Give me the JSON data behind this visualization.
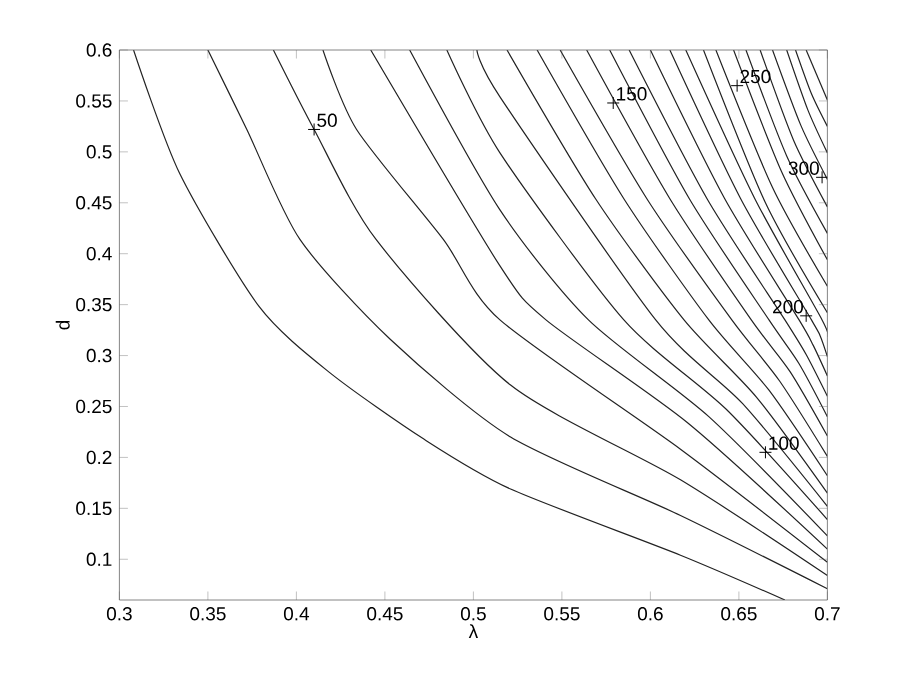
{
  "chart_data": {
    "type": "line",
    "xlabel": "λ",
    "ylabel": "d",
    "xlim": [
      0.3,
      0.7
    ],
    "ylim": [
      0.06,
      0.6
    ],
    "xticks": [
      0.3,
      0.35,
      0.4,
      0.45,
      0.5,
      0.55,
      0.6,
      0.65,
      0.7
    ],
    "yticks": [
      0.1,
      0.15,
      0.2,
      0.25,
      0.3,
      0.35,
      0.4,
      0.45,
      0.5,
      0.55,
      0.6
    ],
    "marker": "none",
    "line_style": "solid",
    "series": [
      {
        "color": "#222222",
        "x": [
          0.308,
          0.334,
          0.379,
          0.419,
          0.472,
          0.521,
          0.617,
          0.676
        ],
        "values": [
          0.6,
          0.479,
          0.348,
          0.283,
          0.218,
          0.169,
          0.104,
          0.06
        ]
      },
      {
        "color": "#222222",
        "x": [
          0.35,
          0.372,
          0.402,
          0.453,
          0.521,
          0.617,
          0.7
        ],
        "values": [
          0.6,
          0.522,
          0.414,
          0.316,
          0.22,
          0.143,
          0.071
        ]
      },
      {
        "color": "#222222",
        "x": [
          0.387,
          0.41,
          0.445,
          0.521,
          0.617,
          0.7
        ],
        "values": [
          0.6,
          0.522,
          0.414,
          0.271,
          0.178,
          0.084
        ]
      },
      {
        "color": "#222222",
        "x": [
          0.415,
          0.434,
          0.483,
          0.515,
          0.617,
          0.7
        ],
        "values": [
          0.6,
          0.522,
          0.414,
          0.335,
          0.208,
          0.097
        ]
      },
      {
        "color": "#222222",
        "x": [
          0.442,
          0.515,
          0.541,
          0.621,
          0.7
        ],
        "values": [
          0.6,
          0.388,
          0.335,
          0.234,
          0.11
        ]
      },
      {
        "color": "#222222",
        "x": [
          0.464,
          0.515,
          0.565,
          0.633,
          0.7
        ],
        "values": [
          0.6,
          0.443,
          0.335,
          0.24,
          0.123
        ]
      },
      {
        "color": "#222222",
        "x": [
          0.485,
          0.515,
          0.585,
          0.643,
          0.7
        ],
        "values": [
          0.6,
          0.499,
          0.335,
          0.247,
          0.139
        ]
      },
      {
        "color": "#222222",
        "x": [
          0.502,
          0.515,
          0.603,
          0.652,
          0.7
        ],
        "values": [
          0.6,
          0.554,
          0.335,
          0.253,
          0.152
        ]
      },
      {
        "color": "#222222",
        "x": [
          0.519,
          0.569,
          0.619,
          0.66,
          0.7
        ],
        "values": [
          0.6,
          0.454,
          0.335,
          0.259,
          0.165
        ]
      },
      {
        "color": "#222222",
        "x": [
          0.536,
          0.585,
          0.633,
          0.667,
          0.7
        ],
        "values": [
          0.6,
          0.454,
          0.335,
          0.266,
          0.182
        ]
      },
      {
        "color": "#222222",
        "x": [
          0.549,
          0.598,
          0.646,
          0.673,
          0.7
        ],
        "values": [
          0.6,
          0.454,
          0.335,
          0.275,
          0.201
        ]
      },
      {
        "color": "#222222",
        "x": [
          0.564,
          0.611,
          0.657,
          0.679,
          0.7
        ],
        "values": [
          0.6,
          0.454,
          0.335,
          0.284,
          0.221
        ]
      },
      {
        "color": "#222222",
        "x": [
          0.577,
          0.622,
          0.667,
          0.684,
          0.7
        ],
        "values": [
          0.6,
          0.454,
          0.335,
          0.292,
          0.24
        ]
      },
      {
        "color": "#222222",
        "x": [
          0.588,
          0.632,
          0.676,
          0.688,
          0.7
        ],
        "values": [
          0.6,
          0.454,
          0.335,
          0.301,
          0.26
        ]
      },
      {
        "color": "#222222",
        "x": [
          0.6,
          0.642,
          0.684,
          0.692,
          0.7
        ],
        "values": [
          0.6,
          0.454,
          0.335,
          0.31,
          0.28
        ]
      },
      {
        "color": "#222222",
        "x": [
          0.611,
          0.651,
          0.691,
          0.696,
          0.7
        ],
        "values": [
          0.6,
          0.454,
          0.335,
          0.319,
          0.299
        ]
      },
      {
        "color": "#222222",
        "x": [
          0.62,
          0.659,
          0.697,
          0.7
        ],
        "values": [
          0.6,
          0.454,
          0.335,
          0.319
        ]
      },
      {
        "color": "#222222",
        "x": [
          0.63,
          0.665,
          0.7
        ],
        "values": [
          0.6,
          0.45,
          0.342
        ]
      },
      {
        "color": "#222222",
        "x": [
          0.637,
          0.669,
          0.7
        ],
        "values": [
          0.6,
          0.465,
          0.368
        ]
      },
      {
        "color": "#222222",
        "x": [
          0.647,
          0.674,
          0.7
        ],
        "values": [
          0.6,
          0.481,
          0.394
        ]
      },
      {
        "color": "#222222",
        "x": [
          0.654,
          0.677,
          0.7
        ],
        "values": [
          0.6,
          0.496,
          0.42
        ]
      },
      {
        "color": "#222222",
        "x": [
          0.662,
          0.681,
          0.7
        ],
        "values": [
          0.6,
          0.511,
          0.446
        ]
      },
      {
        "color": "#222222",
        "x": [
          0.669,
          0.685,
          0.7
        ],
        "values": [
          0.6,
          0.526,
          0.473
        ]
      },
      {
        "color": "#222222",
        "x": [
          0.677,
          0.689,
          0.7
        ],
        "values": [
          0.6,
          0.541,
          0.499
        ]
      },
      {
        "color": "#222222",
        "x": [
          0.682,
          0.691,
          0.7
        ],
        "values": [
          0.6,
          0.557,
          0.525
        ]
      },
      {
        "color": "#222222",
        "x": [
          0.688,
          0.7
        ],
        "values": [
          0.6,
          0.551
        ]
      }
    ],
    "annotations": [
      {
        "text": "50",
        "x": 0.41,
        "y": 0.522
      },
      {
        "text": "150",
        "x": 0.579,
        "y": 0.548
      },
      {
        "text": "250",
        "x": 0.649,
        "y": 0.565
      },
      {
        "text": "300",
        "x": 0.697,
        "y": 0.475
      },
      {
        "text": "200",
        "x": 0.688,
        "y": 0.339
      },
      {
        "text": "100",
        "x": 0.665,
        "y": 0.205
      }
    ]
  }
}
